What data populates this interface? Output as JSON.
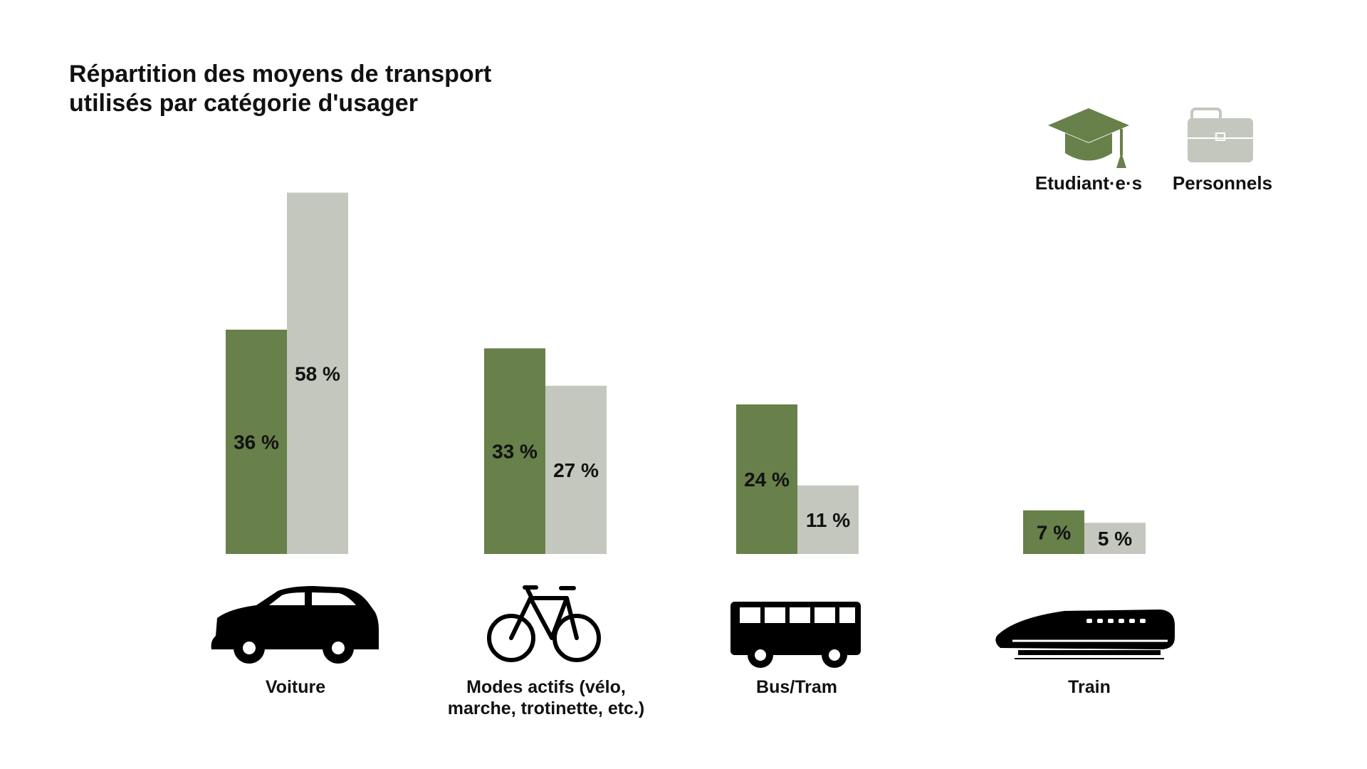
{
  "colors": {
    "students": "#68804a",
    "staff": "#c4c7bd",
    "icon": "#000000",
    "text": "#111111"
  },
  "chart_data": {
    "type": "bar",
    "title_lines": [
      "Répartition des moyens de transport",
      "utilisés par catégorie d'usager"
    ],
    "ylim": [
      0,
      60
    ],
    "grid": false,
    "legend_position": "top-right",
    "categories": [
      {
        "label_lines": [
          "Voiture"
        ],
        "icon": "car-icon"
      },
      {
        "label_lines": [
          "Modes actifs (vélo,",
          "marche, trotinette, etc.)"
        ],
        "icon": "bicycle-icon"
      },
      {
        "label_lines": [
          "Bus/Tram"
        ],
        "icon": "bus-icon"
      },
      {
        "label_lines": [
          "Train"
        ],
        "icon": "train-icon"
      }
    ],
    "series": [
      {
        "name": "Etudiant·e·s",
        "icon": "graduation-cap-icon",
        "color": "#68804a",
        "values": [
          36,
          33,
          24,
          7
        ],
        "labels": [
          "36 %",
          "33 %",
          "24 %",
          "7 %"
        ]
      },
      {
        "name": "Personnels",
        "icon": "briefcase-icon",
        "color": "#c4c7bd",
        "values": [
          58,
          27,
          11,
          5
        ],
        "labels": [
          "58 %",
          "27 %",
          "11 %",
          "5 %"
        ]
      }
    ]
  }
}
